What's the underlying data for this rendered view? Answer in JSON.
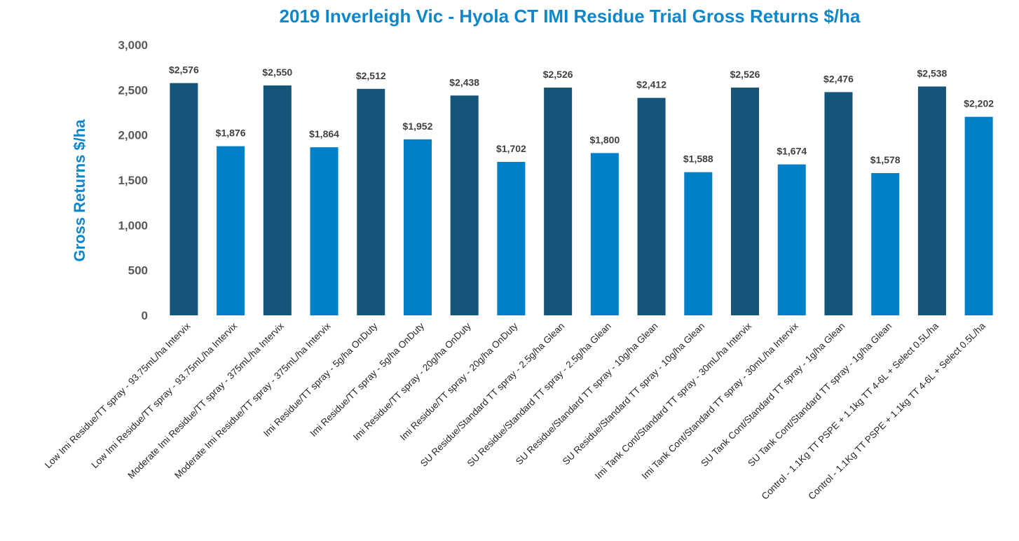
{
  "chart_data": {
    "type": "bar",
    "title": "2019 Inverleigh Vic - Hyola CT IMI Residue Trial Gross Returns $/ha",
    "xlabel": "",
    "ylabel": "Gross Returns $/ha",
    "ylim": [
      0,
      3000
    ],
    "yticks": [
      "0",
      "500",
      "1,000",
      "1,500",
      "2,000",
      "2,500",
      "3,000"
    ],
    "ytick_values": [
      0,
      500,
      1000,
      1500,
      2000,
      2500,
      3000
    ],
    "grid": false,
    "legend": "none",
    "colors": {
      "dark": "#16557A",
      "light": "#0080C7"
    },
    "categories": [
      "Low Imi Residue/TT spray - 93.75mL/ha Intervix",
      "Low Imi Residue/TT spray - 93.75mL/ha Intervix",
      "Moderate Imi Residue/TT spray - 375mL/ha Intervix",
      "Moderate Imi Residue/TT spray - 375mL/ha Intervix",
      "Imi Residue/TT spray - 5g/ha OnDuty",
      "Imi Residue/TT spray - 5g/ha OnDuty",
      "Imi Residue/TT spray - 20g/ha OnDuty",
      "Imi Residue/TT spray - 20g/ha OnDuty",
      "SU Residue/Standard TT spray - 2.5g/ha Glean",
      "SU Residue/Standard TT spray - 2.5g/ha Glean",
      "SU Residue/Standard TT spray - 10g/ha Glean",
      "SU Residue/Standard TT spray - 10g/ha Glean",
      "Imi Tank Cont/Standard TT spray - 30mL/ha Intervix",
      "Imi Tank Cont/Standard TT spray - 30mL/ha Intervix",
      "SU Tank Cont/Standard TT spray - 1g/ha Glean",
      "SU Tank Cont/Standard TT spray - 1g/ha Glean",
      "Control - 1.1Kg TT PSPE + 1.1kg TT 4-6L + Select 0.5L/ha",
      "Control - 1.1Kg TT PSPE + 1.1kg TT 4-6L + Select 0.5L/ha"
    ],
    "values": [
      2576,
      1876,
      2550,
      1864,
      2512,
      1952,
      2438,
      1702,
      2526,
      1800,
      2412,
      1588,
      2526,
      1674,
      2476,
      1578,
      2538,
      2202
    ],
    "value_labels": [
      "$2,576",
      "$1,876",
      "$2,550",
      "$1,864",
      "$2,512",
      "$1,952",
      "$2,438",
      "$1,702",
      "$2,526",
      "$1,800",
      "$2,412",
      "$1,588",
      "$2,526",
      "$1,674",
      "$2,476",
      "$1,578",
      "$2,538",
      "$2,202"
    ],
    "bar_colors": [
      "dark",
      "light",
      "dark",
      "light",
      "dark",
      "light",
      "dark",
      "light",
      "dark",
      "light",
      "dark",
      "light",
      "dark",
      "light",
      "dark",
      "light",
      "dark",
      "light"
    ]
  }
}
